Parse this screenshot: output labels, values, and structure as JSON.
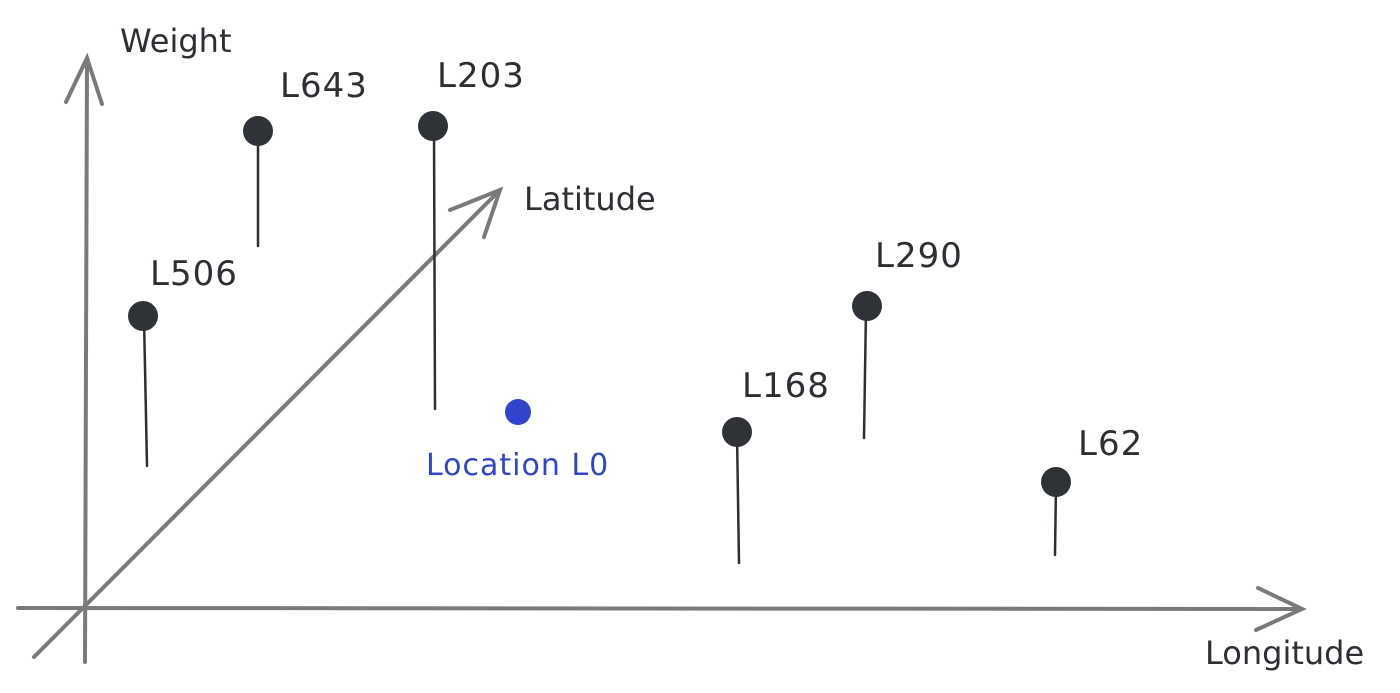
{
  "axes": {
    "vertical_label": "Weight",
    "horizontal_label": "Longitude",
    "diagonal_label": "Latitude"
  },
  "points": [
    {
      "label": "L643"
    },
    {
      "label": "L203"
    },
    {
      "label": "L506"
    },
    {
      "label": "L290"
    },
    {
      "label": "L168"
    },
    {
      "label": "L62"
    }
  ],
  "location": {
    "label": "Location L0",
    "color": "#3344cc"
  },
  "colors": {
    "axis": "#7a7a7a",
    "pin": "#2f3236"
  }
}
